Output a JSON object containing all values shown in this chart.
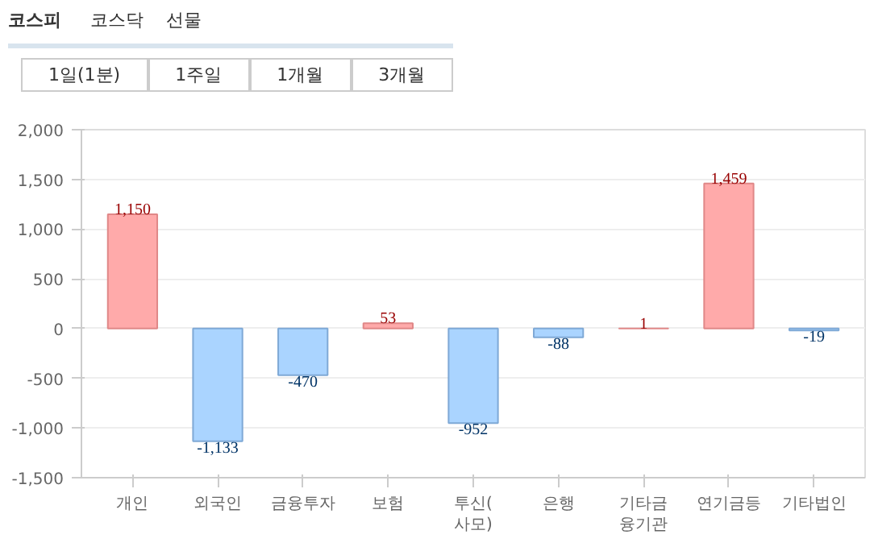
{
  "chart_data": {
    "type": "bar",
    "categories": [
      "개인",
      "외국인",
      "금융투자",
      "보험",
      "투신(사모)",
      "은행",
      "기타금융기관",
      "연기금등",
      "기타법인"
    ],
    "values": [
      1150,
      -1133,
      -470,
      53,
      -952,
      -88,
      1,
      1459,
      -19
    ],
    "colors": [
      "#ffaaaa",
      "#aad4ff",
      "#aad4ff",
      "#ffaaaa",
      "#aad4ff",
      "#aad4ff",
      "#ffaaaa",
      "#ffaaaa",
      "#aad4ff"
    ],
    "value_labels": [
      "1,150",
      "-1,133",
      "-470",
      "53",
      "-952",
      "-88",
      "1",
      "1,459",
      "-19"
    ],
    "ylim": [
      -1500,
      2000
    ],
    "yticks": [
      {
        "value": -1500,
        "label": "-1,500"
      },
      {
        "value": -1000,
        "label": "-1,000"
      },
      {
        "value": -500,
        "label": "-500"
      },
      0,
      500,
      {
        "value": 1000,
        "label": "1,000"
      },
      {
        "value": 1500,
        "label": "1,500"
      },
      {
        "value": 2000,
        "label": "2,000"
      }
    ],
    "grid": "y",
    "annotations": [
      "코스피",
      "코스닥",
      "선물",
      "1일(1분)",
      "1주일",
      "1개월",
      "3개월"
    ]
  }
}
